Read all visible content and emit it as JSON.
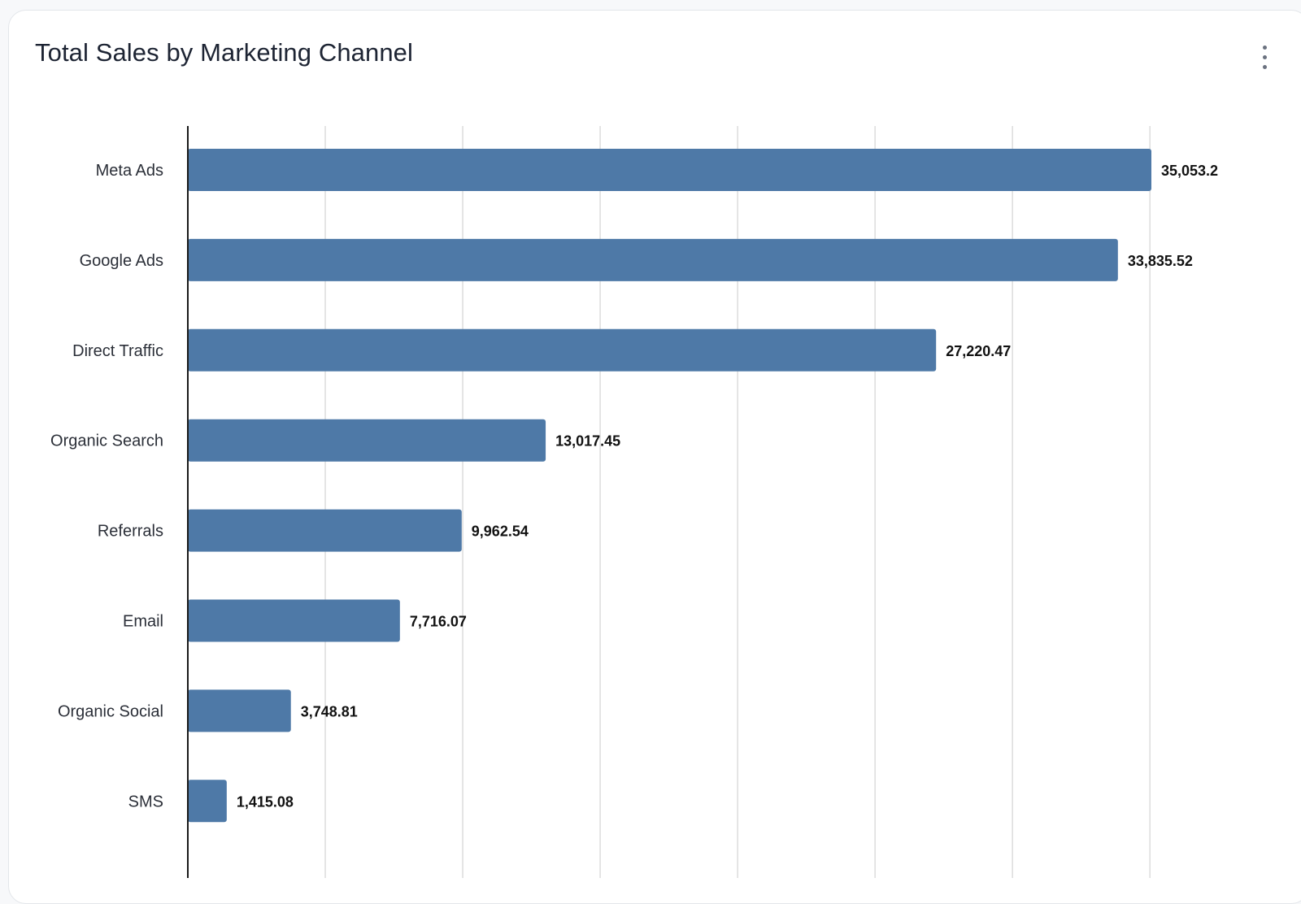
{
  "card": {
    "title": "Total Sales by Marketing Channel",
    "menu_icon": "more-vertical-icon"
  },
  "colors": {
    "bar": "#4e79a7",
    "grid": "#dcdcdc",
    "axis": "#1a1a1a"
  },
  "chart_data": {
    "type": "bar",
    "orientation": "horizontal",
    "title": "Total Sales by Marketing Channel",
    "xlabel": "",
    "ylabel": "",
    "xlim": [
      0,
      35000
    ],
    "grid": true,
    "categories": [
      "Meta Ads",
      "Google Ads",
      "Direct Traffic",
      "Organic Search",
      "Referrals",
      "Email",
      "Organic Social",
      "SMS"
    ],
    "values": [
      35053.2,
      33835.52,
      27220.47,
      13017.45,
      9962.54,
      7716.07,
      3748.81,
      1415.08
    ],
    "value_labels": [
      "35,053.2",
      "33,835.52",
      "27,220.47",
      "13,017.45",
      "9,962.54",
      "7,716.07",
      "3,748.81",
      "1,415.08"
    ]
  }
}
